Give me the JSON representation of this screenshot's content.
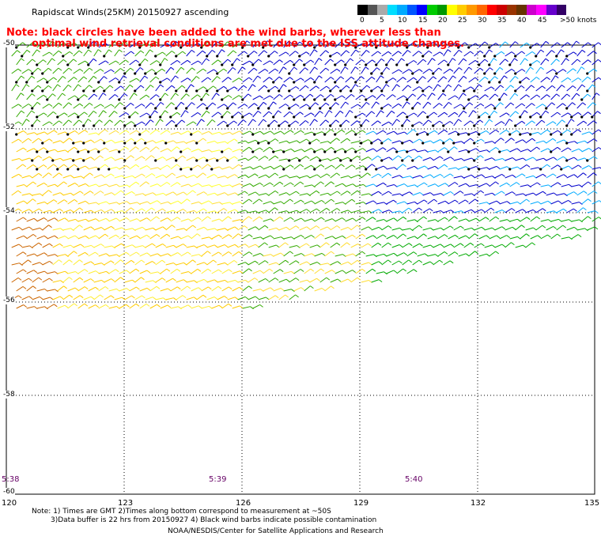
{
  "header": {
    "title": "Rapidscat Winds(25KM) 20150927 ascending",
    "note_line1": "Note: black circles have been added to the wind barbs, wherever less than",
    "note_line2": "optimal wind retrieval conditions are met due to the ISS attitude changes."
  },
  "colorbar": {
    "colors": [
      "#000000",
      "#555555",
      "#aaaaaa",
      "#00ddff",
      "#00aaff",
      "#0055ff",
      "#0000ff",
      "#00cc00",
      "#009900",
      "#ffff00",
      "#ffcc00",
      "#ff9900",
      "#ff6600",
      "#ff0000",
      "#cc0000",
      "#993300",
      "#663300",
      "#cc00cc",
      "#ff00ff",
      "#6600cc",
      "#330066"
    ],
    "labels": [
      "0",
      "5",
      "10",
      "15",
      "20",
      "25",
      "30",
      "35",
      "40",
      "45",
      ">50 knots"
    ]
  },
  "axes": {
    "lat_labels": [
      "-50",
      "-52",
      "-54",
      "-56",
      "-58",
      "-60"
    ],
    "lon_labels": [
      "120",
      "123",
      "126",
      "129",
      "132",
      "135"
    ]
  },
  "times": [
    "5:38",
    "5:39",
    "5:40"
  ],
  "footer": {
    "line1": "Note: 1) Times are GMT 2)Times along bottom correspond to measurement at ~50S",
    "line2": "3)Data buffer is 22 hrs from 20150927 4) Black wind barbs indicate possible contamination",
    "line3": "NOAA/NESDIS/Center for Satellite Applications and Research"
  }
}
